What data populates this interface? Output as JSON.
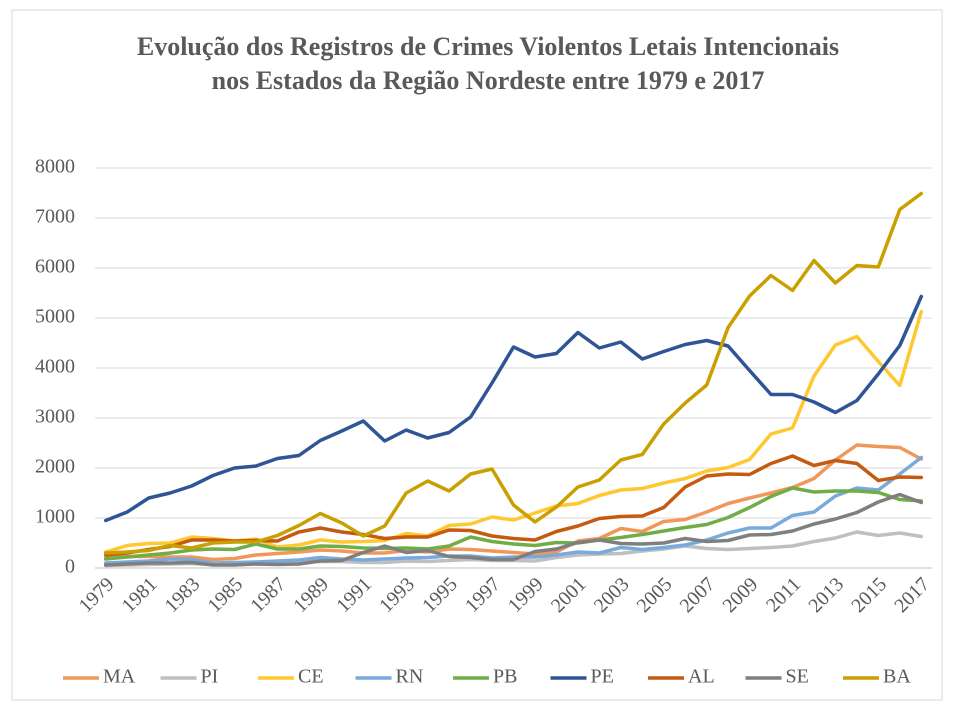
{
  "chart_data": {
    "type": "line",
    "title": "Evolução dos Registros de Crimes Violentos Letais Intencionais nos Estados da Região Nordeste entre 1979 e 2017",
    "categories": [
      "1979",
      null,
      "1981",
      null,
      "1983",
      null,
      "1985",
      null,
      "1987",
      null,
      "1989",
      null,
      "1991",
      null,
      "1993",
      null,
      "1995",
      null,
      "1997",
      null,
      "1999",
      null,
      "2001",
      null,
      "2003",
      null,
      "2005",
      null,
      "2007",
      null,
      "2009",
      null,
      "2011",
      null,
      "2013",
      null,
      "2015",
      null,
      "2017"
    ],
    "ylim": [
      0,
      8000
    ],
    "yticks": [
      0,
      1000,
      2000,
      3000,
      4000,
      5000,
      6000,
      7000,
      8000
    ],
    "grid": true,
    "legend": "bottom",
    "series": [
      {
        "name": "MA",
        "color": "#f1975a",
        "values": [
          200,
          230,
          230,
          220,
          220,
          170,
          190,
          260,
          290,
          320,
          360,
          340,
          300,
          300,
          350,
          320,
          380,
          370,
          340,
          310,
          280,
          320,
          540,
          590,
          790,
          730,
          930,
          970,
          1120,
          1290,
          1400,
          1500,
          1610,
          1790,
          2160,
          2460,
          2430,
          2410,
          2180
        ]
      },
      {
        "name": "PI",
        "color": "#bfbfbf",
        "values": [
          50,
          60,
          70,
          80,
          90,
          70,
          80,
          90,
          100,
          120,
          130,
          130,
          110,
          110,
          140,
          130,
          150,
          170,
          150,
          150,
          140,
          210,
          260,
          280,
          290,
          340,
          380,
          440,
          390,
          370,
          390,
          410,
          440,
          530,
          600,
          720,
          650,
          700,
          630
        ]
      },
      {
        "name": "CE",
        "color": "#ffc830",
        "values": [
          320,
          450,
          490,
          500,
          620,
          590,
          540,
          580,
          420,
          460,
          560,
          520,
          530,
          550,
          690,
          640,
          850,
          880,
          1020,
          960,
          1100,
          1240,
          1290,
          1450,
          1560,
          1590,
          1700,
          1790,
          1940,
          2010,
          2170,
          2680,
          2800,
          3840,
          4460,
          4630,
          4130,
          3650,
          5130
        ]
      },
      {
        "name": "RN",
        "color": "#7aaadc",
        "values": [
          100,
          120,
          140,
          180,
          170,
          100,
          110,
          120,
          140,
          160,
          210,
          180,
          160,
          180,
          200,
          210,
          240,
          240,
          200,
          220,
          220,
          260,
          320,
          300,
          410,
          370,
          410,
          460,
          560,
          700,
          800,
          800,
          1050,
          1120,
          1440,
          1600,
          1560,
          1880,
          2210
        ]
      },
      {
        "name": "PB",
        "color": "#70ad47",
        "values": [
          180,
          220,
          260,
          300,
          360,
          380,
          370,
          480,
          380,
          380,
          440,
          430,
          400,
          390,
          400,
          380,
          440,
          620,
          530,
          480,
          450,
          510,
          500,
          560,
          610,
          670,
          740,
          810,
          870,
          1010,
          1210,
          1430,
          1600,
          1520,
          1540,
          1540,
          1510,
          1370,
          1340
        ]
      },
      {
        "name": "PE",
        "color": "#2f5597",
        "values": [
          950,
          1120,
          1400,
          1500,
          1640,
          1850,
          2000,
          2040,
          2190,
          2250,
          2550,
          2740,
          2940,
          2540,
          2760,
          2600,
          2710,
          3020,
          3700,
          4420,
          4220,
          4290,
          4710,
          4400,
          4520,
          4180,
          4330,
          4470,
          4550,
          4440,
          3950,
          3470,
          3470,
          3320,
          3110,
          3350,
          3880,
          4450,
          5430
        ]
      },
      {
        "name": "AL",
        "color": "#c55a11",
        "values": [
          260,
          300,
          370,
          430,
          560,
          560,
          540,
          550,
          540,
          720,
          800,
          720,
          670,
          590,
          620,
          620,
          760,
          750,
          640,
          590,
          560,
          730,
          840,
          990,
          1030,
          1040,
          1210,
          1620,
          1840,
          1880,
          1870,
          2090,
          2240,
          2050,
          2150,
          2090,
          1750,
          1820,
          1810
        ]
      },
      {
        "name": "SE",
        "color": "#7f7f7f",
        "values": [
          60,
          80,
          100,
          100,
          110,
          60,
          60,
          80,
          70,
          80,
          140,
          150,
          310,
          440,
          310,
          350,
          230,
          210,
          170,
          170,
          330,
          380,
          510,
          560,
          490,
          480,
          500,
          590,
          530,
          550,
          660,
          670,
          740,
          880,
          980,
          1110,
          1320,
          1470,
          1310
        ]
      },
      {
        "name": "BA",
        "color": "#c9a000",
        "values": [
          300,
          320,
          350,
          450,
          400,
          500,
          520,
          520,
          650,
          850,
          1090,
          900,
          640,
          840,
          1500,
          1740,
          1540,
          1880,
          1980,
          1260,
          920,
          1220,
          1620,
          1760,
          2160,
          2270,
          2880,
          3300,
          3660,
          4810,
          5440,
          5850,
          5550,
          6150,
          5700,
          6050,
          6020,
          7170,
          7490
        ]
      }
    ]
  }
}
